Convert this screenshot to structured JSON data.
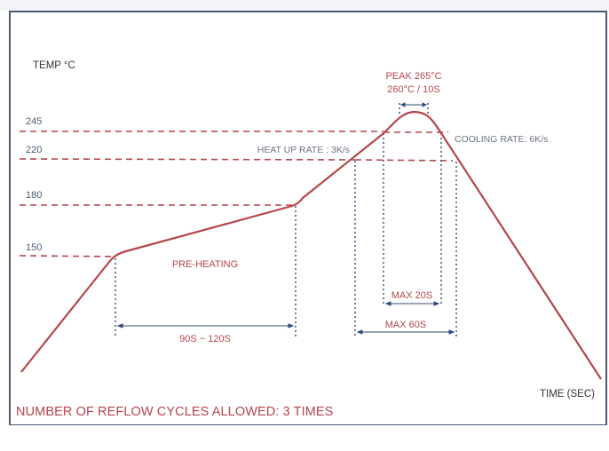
{
  "chart_data": {
    "type": "line",
    "y_axis_label": "TEMP °C",
    "x_axis_label": "TIME (SEC)",
    "y_ticks": [
      "245",
      "220",
      "180",
      "150"
    ],
    "profile_points": [
      {
        "label": "start",
        "temp": 0
      },
      {
        "label": "preheat-start",
        "temp": 150
      },
      {
        "label": "preheat-end",
        "temp": 180
      },
      {
        "label": "reflow-220-rise",
        "temp": 220
      },
      {
        "label": "peak",
        "temp": 265
      },
      {
        "label": "reflow-220-fall",
        "temp": 220
      },
      {
        "label": "end",
        "temp": 0
      }
    ],
    "annotations": {
      "peak": [
        "PEAK 265°C",
        "260°C / 10S"
      ],
      "heat_up_rate": "HEAT UP RATE : 3K/s",
      "cooling_rate": "COOLING RATE: 6K/s",
      "pre_heating": "PRE-HEATING",
      "preheat_duration": "90S ~ 120S",
      "max_peak_window": "MAX 20S",
      "max_reflow_window": "MAX 60S"
    },
    "grid": false
  },
  "footnote": "NUMBER OF REFLOW CYCLES ALLOWED: 3 TIMES",
  "colors": {
    "curve": "#b5464b",
    "dashed_horizontal": "#b5464b",
    "dotted_vertical": "#2f4b7a",
    "axis_text": "#333333",
    "rate_text": "#6a7282",
    "border": "#4a5a72"
  }
}
